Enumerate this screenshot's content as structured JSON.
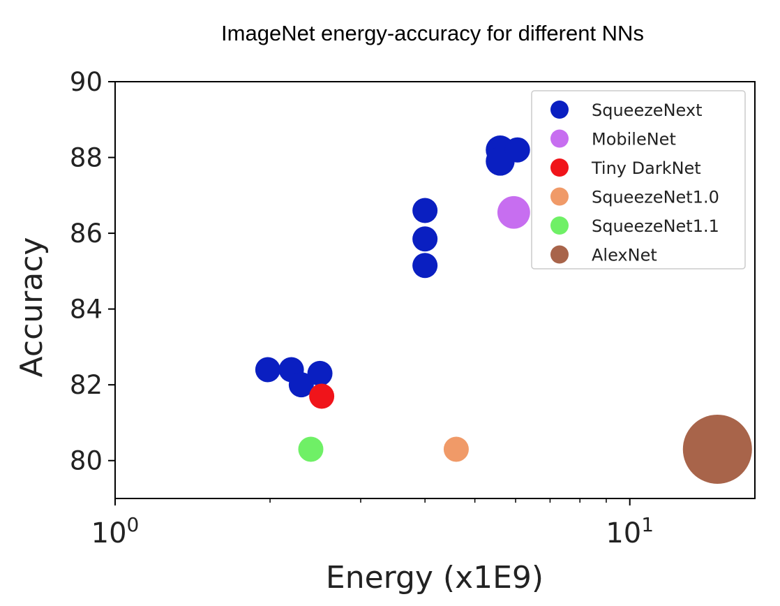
{
  "chart_data": {
    "type": "scatter",
    "title": "ImageNet  energy-accuracy for different NNs",
    "xlabel": "Energy (x1E9)",
    "ylabel": "Accuracy",
    "xscale": "log",
    "xlim": [
      1.0,
      17.5
    ],
    "ylim": [
      79.0,
      90.0
    ],
    "xticks": [
      {
        "value": 1,
        "label_base": "10",
        "label_exp": "0"
      },
      {
        "value": 10,
        "label_base": "10",
        "label_exp": "1"
      }
    ],
    "yticks": [
      80,
      82,
      84,
      86,
      88,
      90
    ],
    "grid": false,
    "legend_position": "top-right",
    "series": [
      {
        "name": "SqueezeNext",
        "color": "#0a1fc1",
        "points": [
          {
            "x": 1.98,
            "y": 82.4,
            "size": 1
          },
          {
            "x": 2.2,
            "y": 82.4,
            "size": 1
          },
          {
            "x": 2.3,
            "y": 82.0,
            "size": 1
          },
          {
            "x": 2.5,
            "y": 82.3,
            "size": 1
          },
          {
            "x": 4.0,
            "y": 86.6,
            "size": 1
          },
          {
            "x": 4.0,
            "y": 85.85,
            "size": 1
          },
          {
            "x": 4.0,
            "y": 85.15,
            "size": 1
          },
          {
            "x": 5.6,
            "y": 88.2,
            "size": 1.15
          },
          {
            "x": 5.6,
            "y": 87.9,
            "size": 1.15
          },
          {
            "x": 6.05,
            "y": 88.2,
            "size": 1.0
          }
        ]
      },
      {
        "name": "MobileNet",
        "color": "#c76ef0",
        "points": [
          {
            "x": 5.95,
            "y": 86.55,
            "size": 1.3
          }
        ]
      },
      {
        "name": "Tiny DarkNet",
        "color": "#f0141a",
        "points": [
          {
            "x": 2.52,
            "y": 81.7,
            "size": 1.0
          }
        ]
      },
      {
        "name": "SqueezeNet1.0",
        "color": "#f09a68",
        "points": [
          {
            "x": 4.6,
            "y": 80.3,
            "size": 1.0
          }
        ]
      },
      {
        "name": "SqueezeNet1.1",
        "color": "#6ff066",
        "points": [
          {
            "x": 2.4,
            "y": 80.3,
            "size": 1.0
          }
        ]
      },
      {
        "name": "AlexNet",
        "color": "#a8644a",
        "points": [
          {
            "x": 14.8,
            "y": 80.3,
            "size": 2.75
          }
        ]
      }
    ]
  }
}
